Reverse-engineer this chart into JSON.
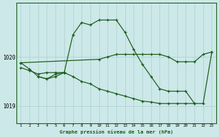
{
  "xlabel": "Graphe pression niveau de la mer (hPa)",
  "background_color": "#cce8e8",
  "line_color": "#1a5c1a",
  "grid_color": "#aacfcf",
  "hours": [
    1,
    2,
    3,
    4,
    5,
    6,
    7,
    8,
    9,
    10,
    11,
    12,
    13,
    14,
    15,
    16,
    17,
    18,
    19,
    20,
    21,
    22,
    23
  ],
  "line_peak": [
    1019.78,
    1019.72,
    1019.65,
    1019.68,
    1019.68,
    1019.68,
    1020.45,
    1020.7,
    1020.65,
    1020.75,
    1020.75,
    1020.75,
    1020.5,
    1020.15,
    1019.85,
    1019.6,
    1019.35,
    1019.3,
    1019.3,
    1019.3,
    1019.05,
    1019.05,
    1020.1
  ],
  "line_diag": [
    1019.88,
    null,
    null,
    null,
    null,
    null,
    null,
    null,
    null,
    1019.95,
    1020.0,
    1020.05,
    1020.05,
    1020.05,
    1020.05,
    1020.05,
    1020.05,
    1020.0,
    1019.9,
    1019.9,
    1019.9,
    1020.05,
    1020.1
  ],
  "line_loop_a": [
    1019.88,
    1019.75,
    1019.6,
    1019.55,
    1019.65,
    1019.68,
    null,
    null,
    null,
    null,
    null,
    null,
    null,
    null,
    null,
    null,
    null,
    null,
    null,
    null,
    null,
    null,
    null
  ],
  "line_loop_b": [
    null,
    null,
    1019.6,
    1019.55,
    1019.6,
    1019.68,
    null,
    null,
    null,
    null,
    null,
    null,
    null,
    null,
    null,
    null,
    null,
    null,
    null,
    null,
    null,
    null,
    null
  ],
  "line_flat": [
    null,
    null,
    null,
    null,
    null,
    1019.68,
    1019.6,
    1019.5,
    1019.45,
    1019.35,
    1019.3,
    1019.25,
    1019.2,
    1019.15,
    1019.1,
    1019.08,
    1019.05,
    1019.05,
    1019.05,
    1019.05,
    1019.05,
    null,
    null
  ],
  "ylim_min": 1018.65,
  "ylim_max": 1021.1,
  "yticks": [
    1019.0,
    1020.0
  ],
  "xticks": [
    1,
    2,
    3,
    4,
    5,
    6,
    7,
    8,
    9,
    10,
    11,
    12,
    13,
    14,
    15,
    16,
    17,
    18,
    19,
    20,
    21,
    22,
    23
  ]
}
